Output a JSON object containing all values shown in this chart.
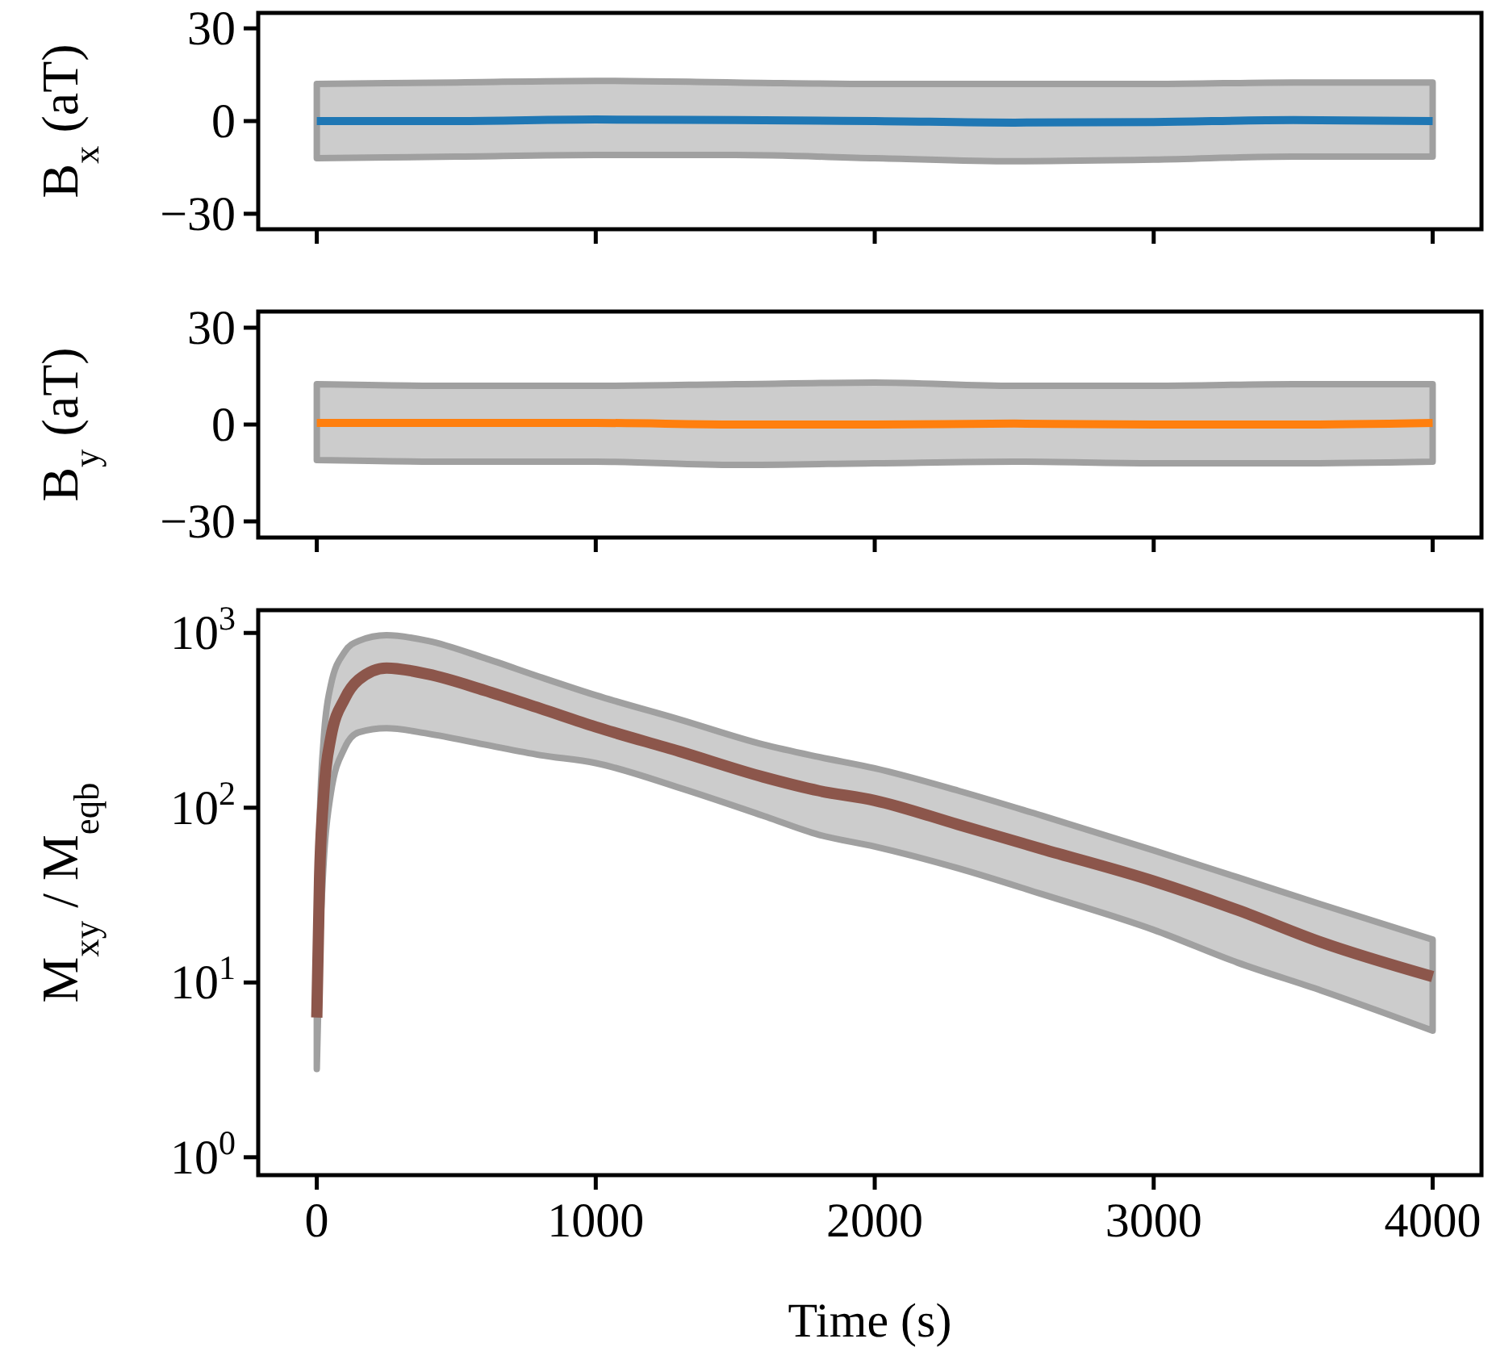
{
  "chart_data": [
    {
      "type": "line",
      "ylabel": "B$_{x}$ (aT)",
      "xlim": [
        -210,
        4175
      ],
      "xticks": [
        {
          "value": 0,
          "label": null
        },
        {
          "value": 1000,
          "label": null
        },
        {
          "value": 2000,
          "label": null
        },
        {
          "value": 3000,
          "label": null
        },
        {
          "value": 4000,
          "label": null
        }
      ],
      "ylim": [
        -35,
        35
      ],
      "yticks": [
        30,
        0,
        -30
      ],
      "tick_labels": "y",
      "x": [
        0,
        500,
        1000,
        1500,
        2000,
        2500,
        3000,
        3500,
        4000
      ],
      "series": [
        {
          "color": "#1f77b4",
          "values": [
            0,
            0,
            0.5,
            0.3,
            0,
            -0.5,
            -0.3,
            0.3,
            0
          ],
          "lower": [
            -12,
            -11.5,
            -11,
            -11,
            -12,
            -13,
            -12.5,
            -11.5,
            -11.5
          ],
          "upper": [
            12,
            12.5,
            13,
            12.5,
            12,
            12,
            12,
            12.5,
            12.5
          ]
        }
      ]
    },
    {
      "type": "line",
      "ylabel": "B$_{y}$ (aT)",
      "xlim": [
        -210,
        4175
      ],
      "xticks": [
        {
          "value": 0,
          "label": null
        },
        {
          "value": 1000,
          "label": null
        },
        {
          "value": 2000,
          "label": null
        },
        {
          "value": 3000,
          "label": null
        },
        {
          "value": 4000,
          "label": null
        }
      ],
      "ylim": [
        -35,
        35
      ],
      "yticks": [
        30,
        0,
        -30
      ],
      "tick_labels": "y",
      "x": [
        0,
        500,
        1000,
        1500,
        2000,
        2500,
        3000,
        3500,
        4000
      ],
      "series": [
        {
          "color": "#ff7f0e",
          "values": [
            0.5,
            0.5,
            0.5,
            0,
            0,
            0.3,
            0,
            0,
            0.5
          ],
          "lower": [
            -11,
            -11.5,
            -11.5,
            -12.5,
            -12,
            -11.5,
            -12,
            -12,
            -11.5
          ],
          "upper": [
            12.5,
            12,
            12,
            12.5,
            13,
            12,
            12,
            12.5,
            12.5
          ]
        }
      ]
    },
    {
      "type": "line",
      "xlabel": "Time (s)",
      "ylabel": "M$_{xy}$ / M$_{eqb}$",
      "log": true,
      "xlim": [
        -210,
        4175
      ],
      "xticks": [
        0,
        1000,
        2000,
        3000,
        4000
      ],
      "ylim": [
        0.79,
        1350
      ],
      "yticks": [
        {
          "value": 1,
          "label": "10$^{0}$"
        },
        {
          "value": 10,
          "label": "10$^{1}$"
        },
        {
          "value": 100,
          "label": "10$^{2}$"
        },
        {
          "value": 1000,
          "label": "10$^{3}$"
        }
      ],
      "x": [
        0,
        10,
        25,
        50,
        100,
        150,
        250,
        400,
        600,
        800,
        1000,
        1300,
        1600,
        1800,
        2000,
        2300,
        2600,
        3000,
        3300,
        3600,
        4000
      ],
      "series": [
        {
          "color": "#8c564b",
          "values": [
            6.3,
            40,
            120,
            250,
            420,
            540,
            630,
            580,
            470,
            370,
            290,
            210,
            150,
            125,
            110,
            80,
            58,
            38,
            26,
            17,
            10.8
          ],
          "lower": [
            3.2,
            15,
            50,
            120,
            220,
            270,
            285,
            265,
            230,
            200,
            180,
            130,
            90,
            70,
            60,
            45,
            32,
            20,
            13,
            9,
            5.3
          ],
          "upper": [
            10,
            80,
            250,
            500,
            780,
            900,
            970,
            900,
            720,
            560,
            440,
            320,
            230,
            195,
            168,
            125,
            90,
            57,
            40,
            28,
            17.6
          ]
        }
      ]
    }
  ]
}
